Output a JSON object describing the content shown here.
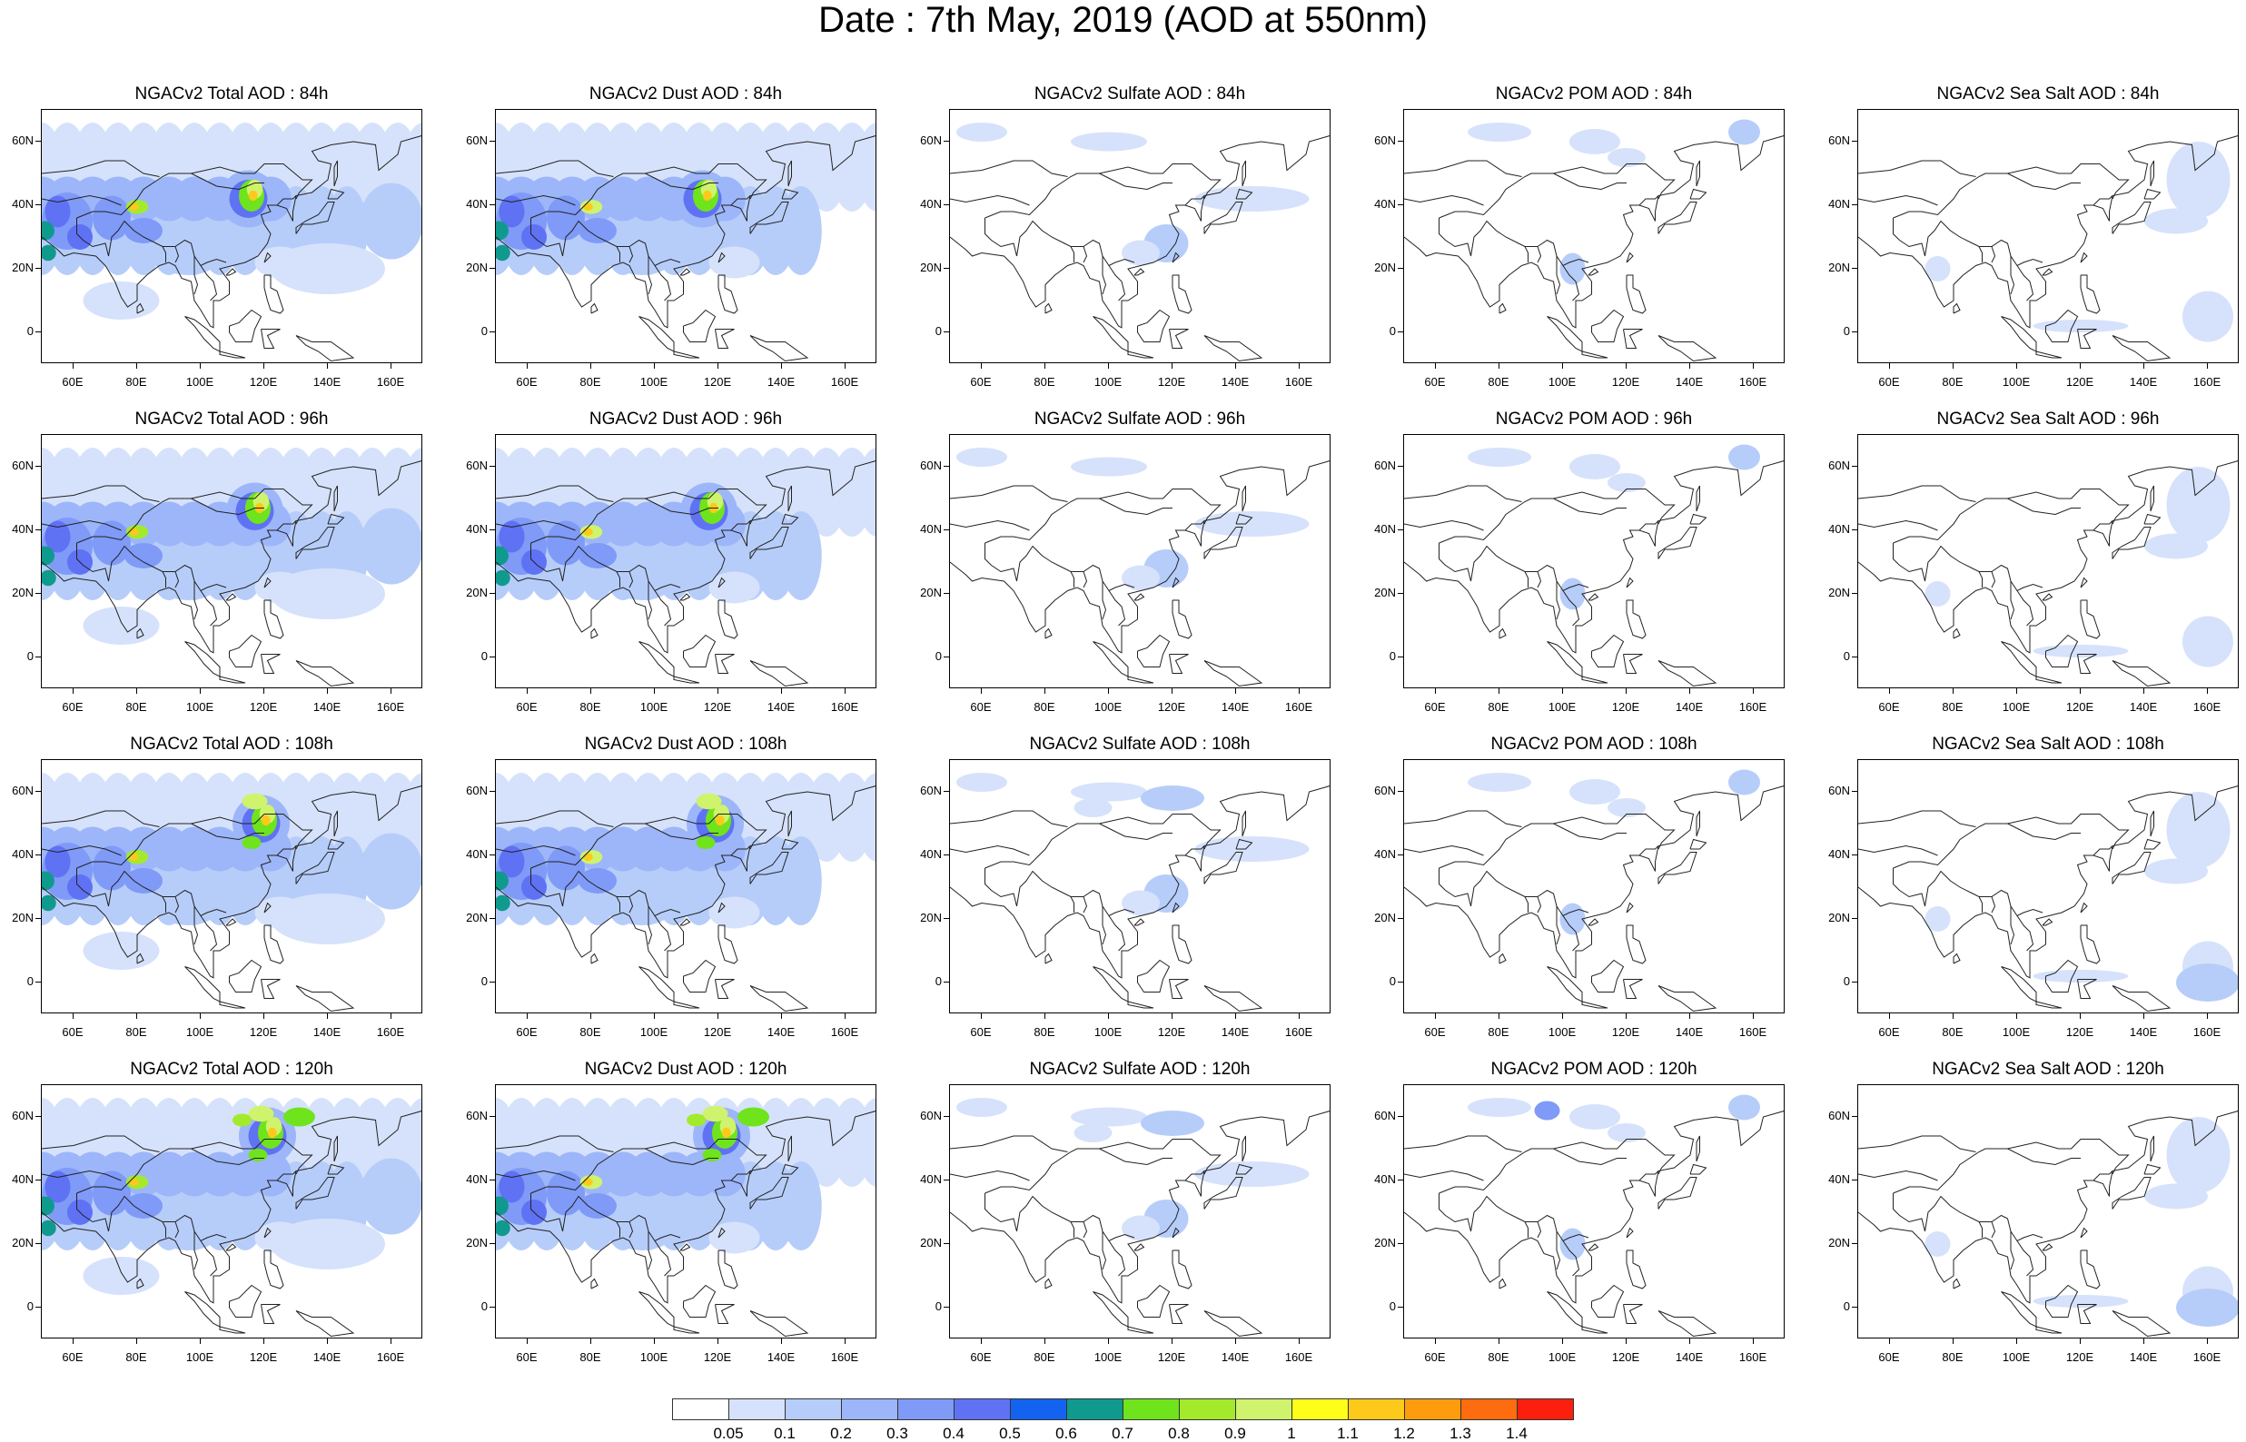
{
  "page_title": "Date : 7th May, 2019 (AOD at 550nm)",
  "map_extent": {
    "lon": [
      50,
      170
    ],
    "lat": [
      -10,
      70
    ]
  },
  "lat_ticks": [
    "60N",
    "40N",
    "20N",
    "0"
  ],
  "lon_ticks": [
    "60E",
    "80E",
    "100E",
    "120E",
    "140E",
    "160E"
  ],
  "colorbar": {
    "colors": [
      "#ffffff",
      "#d6e2fb",
      "#b6cdfa",
      "#9cb6f9",
      "#7f9af7",
      "#5f72f4",
      "#1463f0",
      "#109a8e",
      "#6fe41d",
      "#a3ea2d",
      "#cff36c",
      "#fefe1a",
      "#fdc91a",
      "#fd9d0e",
      "#fd6c0e",
      "#fc1f0d"
    ],
    "labels": [
      "0.05",
      "0.1",
      "0.2",
      "0.3",
      "0.4",
      "0.5",
      "0.6",
      "0.7",
      "0.8",
      "0.9",
      "1",
      "1.1",
      "1.2",
      "1.3",
      "1.4"
    ]
  },
  "panels": [
    {
      "title": "NGACv2 Total AOD : 84h",
      "species": "total"
    },
    {
      "title": "NGACv2 Dust AOD : 84h",
      "species": "dust"
    },
    {
      "title": "NGACv2 Sulfate AOD : 84h",
      "species": "sulfate"
    },
    {
      "title": "NGACv2 POM AOD : 84h",
      "species": "pom"
    },
    {
      "title": "NGACv2 Sea Salt AOD : 84h",
      "species": "seasalt"
    },
    {
      "title": "NGACv2 Total AOD : 96h",
      "species": "total"
    },
    {
      "title": "NGACv2 Dust AOD : 96h",
      "species": "dust"
    },
    {
      "title": "NGACv2 Sulfate AOD : 96h",
      "species": "sulfate"
    },
    {
      "title": "NGACv2 POM AOD : 96h",
      "species": "pom"
    },
    {
      "title": "NGACv2 Sea Salt AOD : 96h",
      "species": "seasalt"
    },
    {
      "title": "NGACv2 Total AOD : 108h",
      "species": "total"
    },
    {
      "title": "NGACv2 Dust AOD : 108h",
      "species": "dust"
    },
    {
      "title": "NGACv2 Sulfate AOD : 108h",
      "species": "sulfate"
    },
    {
      "title": "NGACv2 POM AOD : 108h",
      "species": "pom"
    },
    {
      "title": "NGACv2 Sea Salt AOD : 108h",
      "species": "seasalt"
    },
    {
      "title": "NGACv2 Total AOD : 120h",
      "species": "total"
    },
    {
      "title": "NGACv2 Dust AOD : 120h",
      "species": "dust"
    },
    {
      "title": "NGACv2 Sulfate AOD : 120h",
      "species": "sulfate"
    },
    {
      "title": "NGACv2 POM AOD : 120h",
      "species": "pom"
    },
    {
      "title": "NGACv2 Sea Salt  AOD : 120h",
      "species": "seasalt"
    }
  ]
}
